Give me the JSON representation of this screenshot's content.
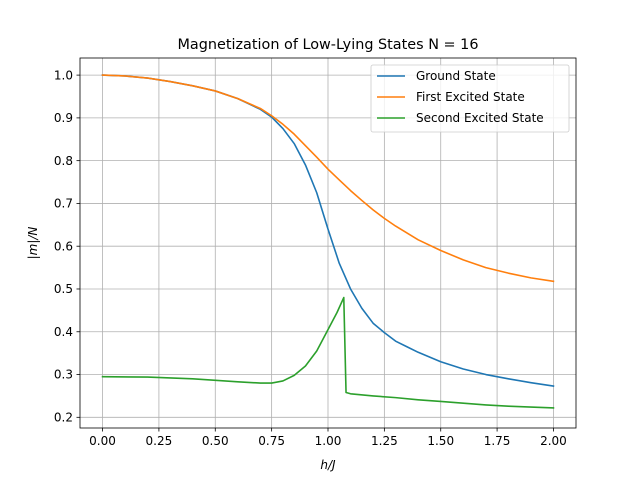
{
  "chart_data": {
    "type": "line",
    "title": "Magnetization of Low-Lying States N = 16",
    "xlabel": "h/J",
    "ylabel": "|m|/N",
    "xlim": [
      -0.1,
      2.1
    ],
    "ylim": [
      0.175,
      1.04
    ],
    "xticks": [
      0.0,
      0.25,
      0.5,
      0.75,
      1.0,
      1.25,
      1.5,
      1.75,
      2.0
    ],
    "xtick_labels": [
      "0.00",
      "0.25",
      "0.50",
      "0.75",
      "1.00",
      "1.25",
      "1.50",
      "1.75",
      "2.00"
    ],
    "yticks": [
      0.2,
      0.3,
      0.4,
      0.5,
      0.6,
      0.7,
      0.8,
      0.9,
      1.0
    ],
    "ytick_labels": [
      "0.2",
      "0.3",
      "0.4",
      "0.5",
      "0.6",
      "0.7",
      "0.8",
      "0.9",
      "1.0"
    ],
    "grid": true,
    "legend_position": "top-right",
    "series": [
      {
        "name": "Ground State",
        "color": "#1f77b4",
        "x": [
          0.0,
          0.1,
          0.2,
          0.3,
          0.4,
          0.5,
          0.6,
          0.7,
          0.75,
          0.8,
          0.85,
          0.9,
          0.95,
          1.0,
          1.05,
          1.1,
          1.15,
          1.2,
          1.25,
          1.3,
          1.35,
          1.4,
          1.5,
          1.6,
          1.7,
          1.8,
          1.9,
          2.0
        ],
        "y": [
          1.0,
          0.998,
          0.993,
          0.985,
          0.975,
          0.963,
          0.945,
          0.92,
          0.902,
          0.875,
          0.84,
          0.79,
          0.725,
          0.64,
          0.56,
          0.5,
          0.455,
          0.42,
          0.398,
          0.378,
          0.365,
          0.352,
          0.33,
          0.313,
          0.3,
          0.29,
          0.281,
          0.273
        ]
      },
      {
        "name": "First Excited State",
        "color": "#ff7f0e",
        "x": [
          0.0,
          0.1,
          0.2,
          0.3,
          0.4,
          0.5,
          0.6,
          0.7,
          0.75,
          0.8,
          0.85,
          0.9,
          0.95,
          1.0,
          1.05,
          1.1,
          1.15,
          1.2,
          1.25,
          1.3,
          1.4,
          1.5,
          1.6,
          1.7,
          1.8,
          1.9,
          2.0
        ],
        "y": [
          1.0,
          0.998,
          0.993,
          0.985,
          0.975,
          0.963,
          0.945,
          0.922,
          0.905,
          0.885,
          0.862,
          0.835,
          0.808,
          0.78,
          0.755,
          0.73,
          0.707,
          0.685,
          0.665,
          0.647,
          0.615,
          0.59,
          0.568,
          0.55,
          0.537,
          0.526,
          0.518
        ]
      },
      {
        "name": "Second Excited State",
        "color": "#2ca02c",
        "x": [
          0.0,
          0.2,
          0.4,
          0.6,
          0.7,
          0.75,
          0.8,
          0.85,
          0.9,
          0.95,
          1.0,
          1.04,
          1.07,
          1.08,
          1.1,
          1.2,
          1.3,
          1.4,
          1.5,
          1.6,
          1.7,
          1.8,
          1.9,
          2.0
        ],
        "y": [
          0.295,
          0.294,
          0.29,
          0.283,
          0.28,
          0.28,
          0.285,
          0.298,
          0.32,
          0.355,
          0.405,
          0.445,
          0.48,
          0.258,
          0.255,
          0.25,
          0.246,
          0.241,
          0.237,
          0.233,
          0.229,
          0.226,
          0.224,
          0.222
        ]
      }
    ]
  }
}
